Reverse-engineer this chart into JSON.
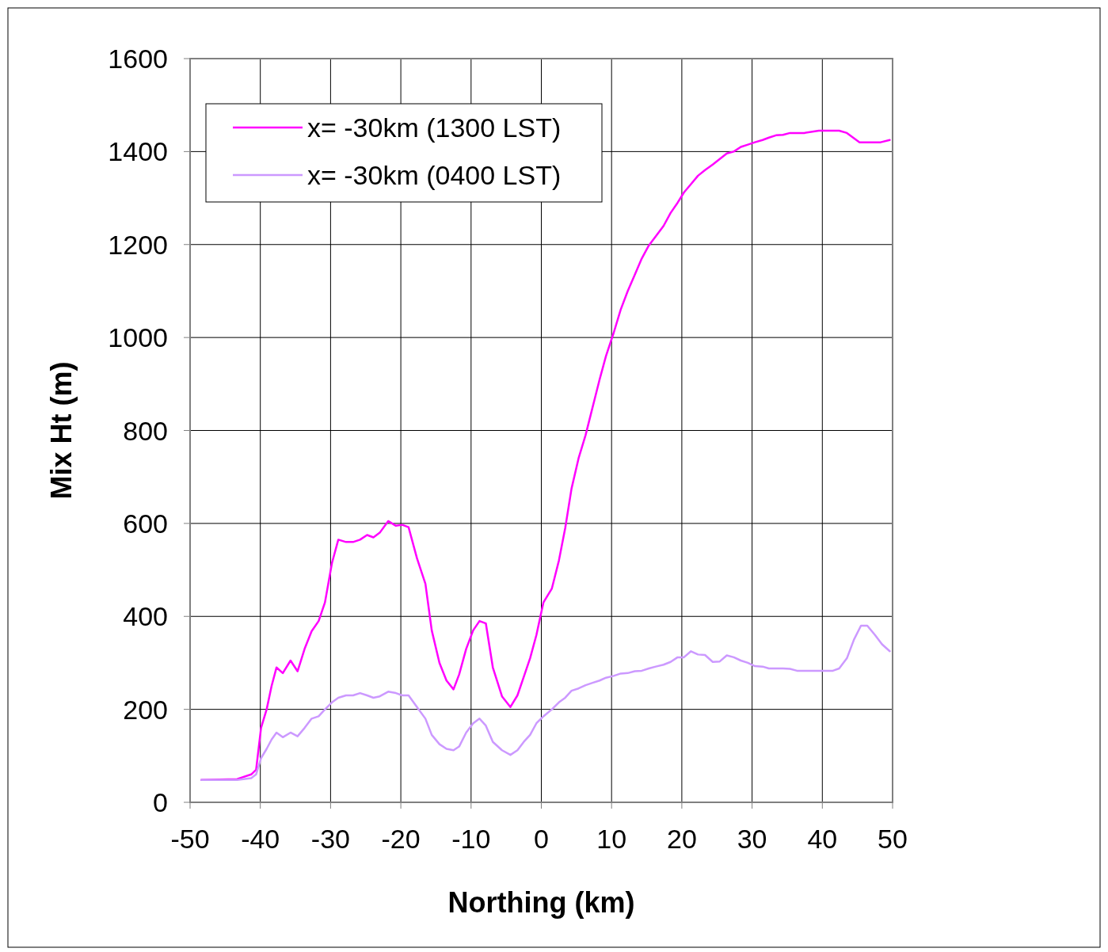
{
  "chart_data": {
    "type": "line",
    "xlabel": "Northing (km)",
    "ylabel": "Mix Ht (m)",
    "xlim": [
      -50,
      50
    ],
    "xticks": [
      -50,
      -40,
      -30,
      -20,
      -10,
      0,
      10,
      20,
      30,
      40,
      50
    ],
    "ylim": [
      0,
      1600
    ],
    "yticks": [
      0,
      200,
      400,
      600,
      800,
      1000,
      1200,
      1400,
      1600
    ],
    "grid": true,
    "legend": "top left",
    "line_style": "solid",
    "marker": "none",
    "series": [
      {
        "name": "x= -30km (1300 LST)",
        "color": "#ff00ff",
        "x": [
          -48.4,
          -43.3,
          -41.3,
          -40.6,
          -39.9,
          -39.1,
          -38.4,
          -37.7,
          -36.8,
          -35.7,
          -34.7,
          -33.7,
          -32.7,
          -31.7,
          -30.8,
          -29.8,
          -28.9,
          -27.8,
          -26.8,
          -25.8,
          -24.8,
          -23.9,
          -23.0,
          -21.8,
          -20.7,
          -19.8,
          -18.9,
          -17.7,
          -16.5,
          -15.6,
          -14.5,
          -13.5,
          -12.5,
          -11.7,
          -10.7,
          -9.7,
          -8.8,
          -7.9,
          -6.9,
          -5.6,
          -4.4,
          -3.4,
          -2.5,
          -1.6,
          -0.7,
          0.3,
          1.5,
          2.5,
          3.4,
          4.3,
          5.3,
          6.3,
          7.3,
          8.3,
          9.2,
          10.3,
          11.3,
          12.3,
          13.3,
          14.3,
          15.3,
          16.3,
          17.4,
          18.4,
          19.4,
          20.3,
          21.3,
          22.3,
          23.3,
          24.4,
          25.4,
          26.4,
          27.4,
          28.4,
          29.4,
          30.4,
          31.5,
          32.4,
          33.4,
          34.4,
          35.4,
          37.4,
          39.5,
          42.4,
          43.5,
          45.3,
          48.3,
          49.6
        ],
        "values": [
          48,
          50,
          60,
          70,
          160,
          200,
          250,
          290,
          278,
          305,
          282,
          330,
          368,
          390,
          430,
          515,
          565,
          560,
          560,
          565,
          575,
          570,
          580,
          605,
          595,
          597,
          592,
          525,
          470,
          370,
          300,
          262,
          243,
          275,
          330,
          370,
          390,
          385,
          290,
          228,
          205,
          230,
          270,
          310,
          360,
          430,
          460,
          520,
          590,
          675,
          740,
          790,
          850,
          910,
          960,
          1010,
          1060,
          1100,
          1135,
          1170,
          1198,
          1218,
          1240,
          1268,
          1290,
          1312,
          1330,
          1348,
          1360,
          1372,
          1384,
          1396,
          1400,
          1410,
          1415,
          1420,
          1425,
          1430,
          1435,
          1436,
          1440,
          1440,
          1445,
          1445,
          1440,
          1420,
          1420,
          1425
        ]
      },
      {
        "name": "x= -30km (0400 LST)",
        "color": "#cc99ff",
        "x": [
          -48.4,
          -43.3,
          -41.3,
          -40.6,
          -39.9,
          -39.1,
          -38.4,
          -37.7,
          -36.8,
          -35.7,
          -34.7,
          -33.7,
          -32.7,
          -31.7,
          -30.8,
          -29.8,
          -28.9,
          -27.8,
          -26.8,
          -25.8,
          -24.8,
          -23.9,
          -23.0,
          -21.8,
          -20.7,
          -19.8,
          -18.9,
          -17.7,
          -16.5,
          -15.6,
          -14.5,
          -13.5,
          -12.5,
          -11.7,
          -10.7,
          -9.7,
          -8.8,
          -7.9,
          -6.9,
          -5.6,
          -4.4,
          -3.4,
          -2.5,
          -1.6,
          -0.7,
          0.3,
          1.5,
          2.5,
          3.4,
          4.3,
          5.3,
          6.3,
          7.3,
          8.3,
          9.2,
          10.3,
          11.3,
          12.3,
          13.3,
          14.3,
          15.3,
          16.3,
          17.4,
          18.4,
          19.4,
          20.3,
          21.3,
          22.3,
          23.3,
          24.4,
          25.4,
          26.4,
          27.4,
          28.4,
          29.4,
          30.4,
          31.5,
          32.4,
          34.4,
          35.4,
          36.4,
          40.5,
          41.5,
          42.4,
          43.5,
          44.5,
          45.5,
          46.4,
          47.5,
          48.5,
          49.6
        ],
        "values": [
          48,
          48,
          52,
          60,
          95,
          115,
          135,
          150,
          140,
          150,
          142,
          160,
          180,
          185,
          200,
          215,
          225,
          230,
          230,
          235,
          230,
          225,
          228,
          238,
          235,
          230,
          230,
          205,
          180,
          145,
          125,
          115,
          112,
          120,
          150,
          170,
          180,
          165,
          130,
          112,
          102,
          112,
          130,
          145,
          170,
          185,
          200,
          215,
          225,
          240,
          245,
          252,
          257,
          262,
          268,
          272,
          277,
          278,
          282,
          283,
          288,
          292,
          296,
          302,
          312,
          312,
          325,
          318,
          317,
          302,
          303,
          316,
          312,
          305,
          300,
          293,
          292,
          288,
          288,
          287,
          283,
          283,
          283,
          288,
          310,
          350,
          380,
          380,
          360,
          340,
          325
        ]
      }
    ]
  }
}
